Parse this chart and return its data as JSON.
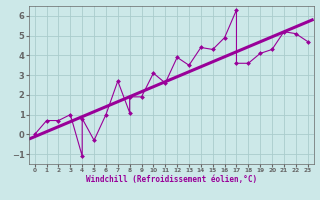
{
  "xlabel": "Windchill (Refroidissement éolien,°C)",
  "scatter_x": [
    0,
    1,
    2,
    3,
    4,
    4,
    5,
    6,
    7,
    8,
    8,
    9,
    10,
    11,
    12,
    13,
    14,
    15,
    16,
    17,
    17,
    18,
    19,
    20,
    21,
    22,
    23
  ],
  "scatter_y": [
    0.0,
    0.7,
    0.7,
    1.0,
    -1.1,
    0.8,
    -0.3,
    1.0,
    2.7,
    1.1,
    1.9,
    1.9,
    3.1,
    2.6,
    3.9,
    3.5,
    4.4,
    4.3,
    4.9,
    6.3,
    3.6,
    3.6,
    4.1,
    4.3,
    5.2,
    5.1,
    4.7
  ],
  "line_color": "#990099",
  "scatter_color": "#990099",
  "regression_color": "#990099",
  "bg_color": "#cce8e8",
  "grid_color": "#aacccc",
  "xlim": [
    -0.5,
    23.5
  ],
  "ylim": [
    -1.5,
    6.5
  ],
  "xticks": [
    0,
    1,
    2,
    3,
    4,
    5,
    6,
    7,
    8,
    9,
    10,
    11,
    12,
    13,
    14,
    15,
    16,
    17,
    18,
    19,
    20,
    21,
    22,
    23
  ],
  "yticks": [
    -1,
    0,
    1,
    2,
    3,
    4,
    5,
    6
  ],
  "reg_slope": 0.198,
  "reg_intercept": 0.18
}
